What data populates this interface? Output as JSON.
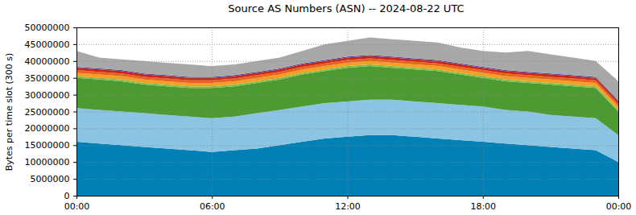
{
  "chart_data": {
    "type": "area",
    "title": "Source AS Numbers (ASN) -- 2024-08-22 UTC",
    "y_label": "Bytes per time slot (300 s)",
    "stacked": true,
    "grid": true,
    "x": [
      0,
      1,
      2,
      3,
      4,
      5,
      6,
      7,
      8,
      9,
      10,
      11,
      12,
      13,
      14,
      15,
      16,
      17,
      18,
      19,
      20,
      21,
      22,
      23,
      24
    ],
    "xlim": [
      0,
      24
    ],
    "xticks": [
      {
        "value": 0,
        "label": "00:00"
      },
      {
        "value": 6,
        "label": "06:00"
      },
      {
        "value": 12,
        "label": "12:00"
      },
      {
        "value": 18,
        "label": "18:00"
      },
      {
        "value": 24,
        "label": "00:00"
      }
    ],
    "ylim": [
      0,
      50000000
    ],
    "yticks": [
      0,
      5000000,
      10000000,
      15000000,
      20000000,
      25000000,
      30000000,
      35000000,
      40000000,
      45000000,
      50000000
    ],
    "series": [
      {
        "color": "#0080b4",
        "values": [
          16000000,
          15500000,
          15000000,
          14500000,
          14000000,
          13500000,
          13000000,
          13500000,
          14000000,
          15000000,
          16000000,
          17000000,
          17500000,
          18000000,
          18000000,
          17500000,
          17000000,
          16500000,
          16000000,
          15500000,
          15000000,
          14500000,
          14000000,
          13500000,
          10000000
        ]
      },
      {
        "color": "#8cc4e4",
        "values": [
          10000000,
          10000000,
          10000000,
          10000000,
          10000000,
          10000000,
          10000000,
          10000000,
          10500000,
          10500000,
          10500000,
          10500000,
          10500000,
          10500000,
          10500000,
          10500000,
          10500000,
          10500000,
          10500000,
          10000000,
          10000000,
          9500000,
          9500000,
          9500000,
          8000000
        ]
      },
      {
        "color": "#4e9a32",
        "values": [
          9000000,
          9000000,
          9000000,
          8500000,
          8500000,
          8500000,
          9000000,
          9000000,
          9000000,
          9000000,
          9500000,
          9500000,
          10000000,
          10000000,
          9500000,
          9500000,
          9500000,
          9000000,
          8500000,
          8500000,
          8500000,
          9000000,
          9000000,
          9000000,
          7000000
        ]
      },
      {
        "color": "#7cc04c",
        "values": [
          500000,
          500000,
          500000,
          500000,
          500000,
          500000,
          500000,
          500000,
          500000,
          500000,
          500000,
          500000,
          500000,
          500000,
          500000,
          500000,
          500000,
          500000,
          500000,
          500000,
          500000,
          500000,
          500000,
          500000,
          500000
        ]
      },
      {
        "color": "#f5a024",
        "values": [
          1000000,
          1000000,
          1000000,
          1000000,
          1000000,
          1000000,
          1000000,
          1000000,
          1000000,
          1000000,
          1000000,
          1000000,
          1000000,
          1000000,
          1000000,
          1000000,
          1000000,
          1000000,
          1000000,
          1000000,
          1000000,
          1000000,
          1000000,
          1000000,
          1000000
        ]
      },
      {
        "color": "#e8641a",
        "values": [
          800000,
          800000,
          800000,
          800000,
          800000,
          800000,
          800000,
          800000,
          800000,
          800000,
          800000,
          800000,
          800000,
          800000,
          800000,
          800000,
          800000,
          800000,
          800000,
          800000,
          800000,
          800000,
          800000,
          800000,
          800000
        ]
      },
      {
        "color": "#cc2414",
        "values": [
          700000,
          700000,
          700000,
          700000,
          700000,
          700000,
          700000,
          700000,
          700000,
          700000,
          700000,
          700000,
          700000,
          700000,
          700000,
          700000,
          700000,
          700000,
          700000,
          700000,
          700000,
          700000,
          700000,
          700000,
          700000
        ]
      },
      {
        "color": "#5a4496",
        "values": [
          300000,
          300000,
          300000,
          300000,
          300000,
          300000,
          300000,
          300000,
          300000,
          300000,
          300000,
          300000,
          300000,
          300000,
          300000,
          300000,
          300000,
          300000,
          300000,
          300000,
          300000,
          300000,
          300000,
          300000,
          300000
        ]
      },
      {
        "color": "#a8a8a8",
        "values": [
          4700000,
          3200000,
          3200000,
          3700000,
          3700000,
          3700000,
          3200000,
          3200000,
          3200000,
          3200000,
          3700000,
          4700000,
          4700000,
          5200000,
          5200000,
          5200000,
          5200000,
          4700000,
          4700000,
          5200000,
          6200000,
          5700000,
          5200000,
          4700000,
          5700000
        ]
      }
    ]
  }
}
